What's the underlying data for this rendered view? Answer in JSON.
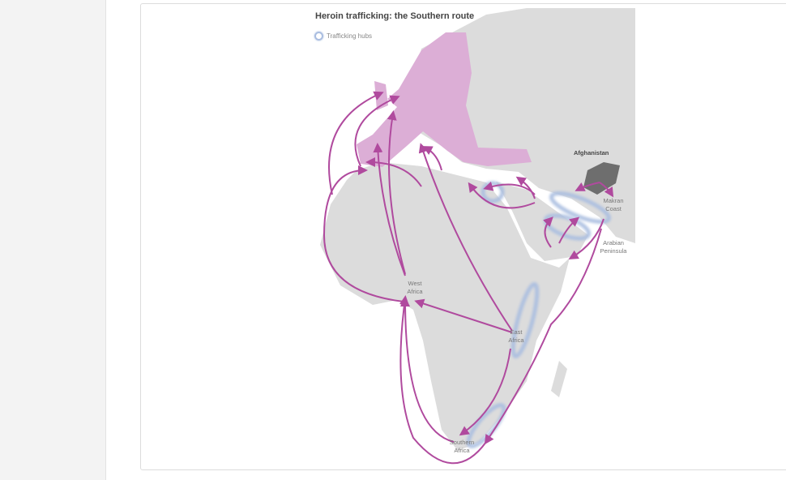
{
  "map": {
    "title": "Heroin trafficking: the Southern route",
    "legend": {
      "hubs_label": "Trafficking hubs",
      "hub_color": "#a9bde0"
    },
    "labels": {
      "afghanistan": "Afghanistan",
      "makran": "Makran Coast",
      "arabian": "Arabian Peninsula",
      "west_africa": "West Africa",
      "east_africa": "East Africa",
      "southern_africa": "Southern Africa"
    },
    "colors": {
      "land": "#dcdcdc",
      "europe": "#dcaed6",
      "afghanistan": "#6e6e6e",
      "route": "#b04a9e"
    }
  }
}
